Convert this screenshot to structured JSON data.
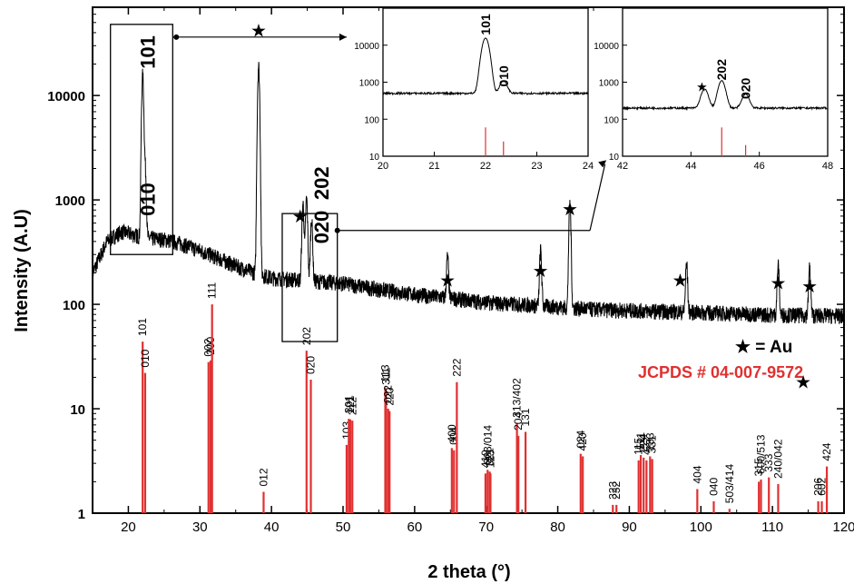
{
  "chart_data": {
    "type": "line",
    "xlabel": "2 theta (°)",
    "ylabel": "Intensity (A.U)",
    "xlim": [
      15,
      120
    ],
    "ylim": [
      1,
      70000
    ],
    "y_scale": "log",
    "x_ticks": [
      "20",
      "30",
      "40",
      "50",
      "60",
      "70",
      "80",
      "90",
      "100",
      "110",
      "120"
    ],
    "y_ticks": [
      "1",
      "10",
      "100",
      "1000",
      "10000"
    ],
    "grid": false,
    "legend_marker": "★ = Au",
    "reference_label": "JCPDS # 04-007-9572",
    "xrd_pattern": {
      "baseline_points": [
        [
          15,
          200
        ],
        [
          17,
          400
        ],
        [
          19,
          500
        ],
        [
          21,
          460
        ],
        [
          23,
          430
        ],
        [
          25,
          420
        ],
        [
          27,
          390
        ],
        [
          30,
          330
        ],
        [
          33,
          270
        ],
        [
          36,
          220
        ],
        [
          40,
          180
        ],
        [
          45,
          170
        ],
        [
          50,
          160
        ],
        [
          55,
          140
        ],
        [
          60,
          125
        ],
        [
          65,
          115
        ],
        [
          70,
          105
        ],
        [
          75,
          100
        ],
        [
          80,
          95
        ],
        [
          85,
          90
        ],
        [
          90,
          88
        ],
        [
          95,
          86
        ],
        [
          100,
          84
        ],
        [
          105,
          82
        ],
        [
          110,
          80
        ],
        [
          115,
          79
        ],
        [
          120,
          78
        ]
      ],
      "peaks": [
        {
          "x": 22.0,
          "y": 15000,
          "label": "101"
        },
        {
          "x": 22.35,
          "y": 1600,
          "label": "010"
        },
        {
          "x": 38.2,
          "y": 19000,
          "label": "★"
        },
        {
          "x": 44.4,
          "y": 750,
          "label": "★"
        },
        {
          "x": 44.9,
          "y": 850,
          "label": "202"
        },
        {
          "x": 45.6,
          "y": 500,
          "label": "020"
        },
        {
          "x": 64.6,
          "y": 170,
          "label": "★"
        },
        {
          "x": 77.6,
          "y": 230,
          "label": "★"
        },
        {
          "x": 81.7,
          "y": 800,
          "label": "★"
        },
        {
          "x": 98.0,
          "y": 160,
          "label": "★"
        },
        {
          "x": 110.8,
          "y": 155,
          "label": "★"
        },
        {
          "x": 115.2,
          "y": 145,
          "label": "★"
        }
      ],
      "peak_labels": [
        {
          "text": "101",
          "x": 22.0
        },
        {
          "text": "010",
          "x": 23.0
        },
        {
          "text": "202",
          "x": 47.5
        },
        {
          "text": "020",
          "x": 47.5
        }
      ],
      "star_markers_x": [
        38.2,
        44.0,
        64.6,
        77.6,
        81.7,
        97.1,
        110.8,
        115.2
      ]
    },
    "reference_lines": [
      {
        "x": 22.0,
        "y": 44,
        "label": "101"
      },
      {
        "x": 22.35,
        "y": 22,
        "label": "010"
      },
      {
        "x": 31.2,
        "y": 28,
        "label": "002"
      },
      {
        "x": 31.5,
        "y": 29,
        "label": "200"
      },
      {
        "x": 31.7,
        "y": 100,
        "label": "111"
      },
      {
        "x": 38.9,
        "y": 1.6,
        "label": "012"
      },
      {
        "x": 44.9,
        "y": 36,
        "label": "202"
      },
      {
        "x": 45.5,
        "y": 19,
        "label": "020"
      },
      {
        "x": 50.5,
        "y": 4.5,
        "label": "103"
      },
      {
        "x": 50.8,
        "y": 8,
        "label": "301"
      },
      {
        "x": 51.3,
        "y": 7.7,
        "label": "212"
      },
      {
        "x": 51.0,
        "y": 7.9,
        "label": "121"
      },
      {
        "x": 55.9,
        "y": 16,
        "label": "113"
      },
      {
        "x": 56.0,
        "y": 15,
        "label": "311"
      },
      {
        "x": 56.3,
        "y": 10,
        "label": "022"
      },
      {
        "x": 56.5,
        "y": 9.5,
        "label": "220"
      },
      {
        "x": 65.2,
        "y": 4.2,
        "label": "400"
      },
      {
        "x": 65.5,
        "y": 4.0,
        "label": "004"
      },
      {
        "x": 65.9,
        "y": 18,
        "label": "222"
      },
      {
        "x": 69.9,
        "y": 2.4,
        "label": "410"
      },
      {
        "x": 70.2,
        "y": 2.6,
        "label": "303/014"
      },
      {
        "x": 70.5,
        "y": 2.5,
        "label": "321"
      },
      {
        "x": 70.6,
        "y": 2.4,
        "label": "123"
      },
      {
        "x": 74.3,
        "y": 7.3,
        "label": "313/402"
      },
      {
        "x": 74.5,
        "y": 5.5,
        "label": "204"
      },
      {
        "x": 75.5,
        "y": 6.0,
        "label": "131"
      },
      {
        "x": 83.2,
        "y": 3.7,
        "label": "024"
      },
      {
        "x": 83.5,
        "y": 3.5,
        "label": "420"
      },
      {
        "x": 87.7,
        "y": 1.2,
        "label": "323"
      },
      {
        "x": 88.2,
        "y": 1.2,
        "label": "232"
      },
      {
        "x": 91.3,
        "y": 3.2,
        "label": "115"
      },
      {
        "x": 91.6,
        "y": 3.6,
        "label": "511"
      },
      {
        "x": 92.0,
        "y": 3.4,
        "label": "224"
      },
      {
        "x": 92.4,
        "y": 3.2,
        "label": "422"
      },
      {
        "x": 92.9,
        "y": 3.5,
        "label": "133"
      },
      {
        "x": 93.2,
        "y": 3.3,
        "label": "331"
      },
      {
        "x": 99.5,
        "y": 1.7,
        "label": "404"
      },
      {
        "x": 101.8,
        "y": 1.3,
        "label": "040"
      },
      {
        "x": 104.0,
        "y": 1.1,
        "label": "503/414"
      },
      {
        "x": 108.1,
        "y": 2.0,
        "label": "315"
      },
      {
        "x": 108.4,
        "y": 2.1,
        "label": "600/513"
      },
      {
        "x": 109.5,
        "y": 2.2,
        "label": "333"
      },
      {
        "x": 110.8,
        "y": 1.9,
        "label": "240/042"
      },
      {
        "x": 116.4,
        "y": 1.3,
        "label": "206"
      },
      {
        "x": 116.9,
        "y": 1.3,
        "label": "602"
      },
      {
        "x": 117.6,
        "y": 2.8,
        "label": "424"
      }
    ],
    "insets": [
      {
        "xlim": [
          20,
          24
        ],
        "ylim": [
          10,
          100000
        ],
        "x_ticks": [
          "20",
          "21",
          "22",
          "23",
          "24"
        ],
        "y_ticks": [
          "10",
          "100",
          "1000",
          "10000"
        ],
        "peaks": [
          {
            "x": 22.0,
            "y": 15000,
            "label": "101"
          },
          {
            "x": 22.35,
            "y": 600,
            "label": "010"
          }
        ],
        "baseline": 500,
        "ref_lines": [
          {
            "x": 22.0,
            "y": 60
          },
          {
            "x": 22.35,
            "y": 25
          }
        ]
      },
      {
        "xlim": [
          42,
          48
        ],
        "ylim": [
          10,
          100000
        ],
        "x_ticks": [
          "42",
          "44",
          "46",
          "48"
        ],
        "y_ticks": [
          "10",
          "100",
          "1000",
          "10000"
        ],
        "peaks": [
          {
            "x": 44.4,
            "y": 450,
            "label": "★"
          },
          {
            "x": 44.9,
            "y": 900,
            "label": "202"
          },
          {
            "x": 45.6,
            "y": 280,
            "label": "020"
          }
        ],
        "baseline": 200,
        "ref_lines": [
          {
            "x": 44.9,
            "y": 60
          },
          {
            "x": 45.6,
            "y": 20
          }
        ]
      }
    ],
    "colors": {
      "pattern": "#000000",
      "reference": "#e03030"
    }
  }
}
